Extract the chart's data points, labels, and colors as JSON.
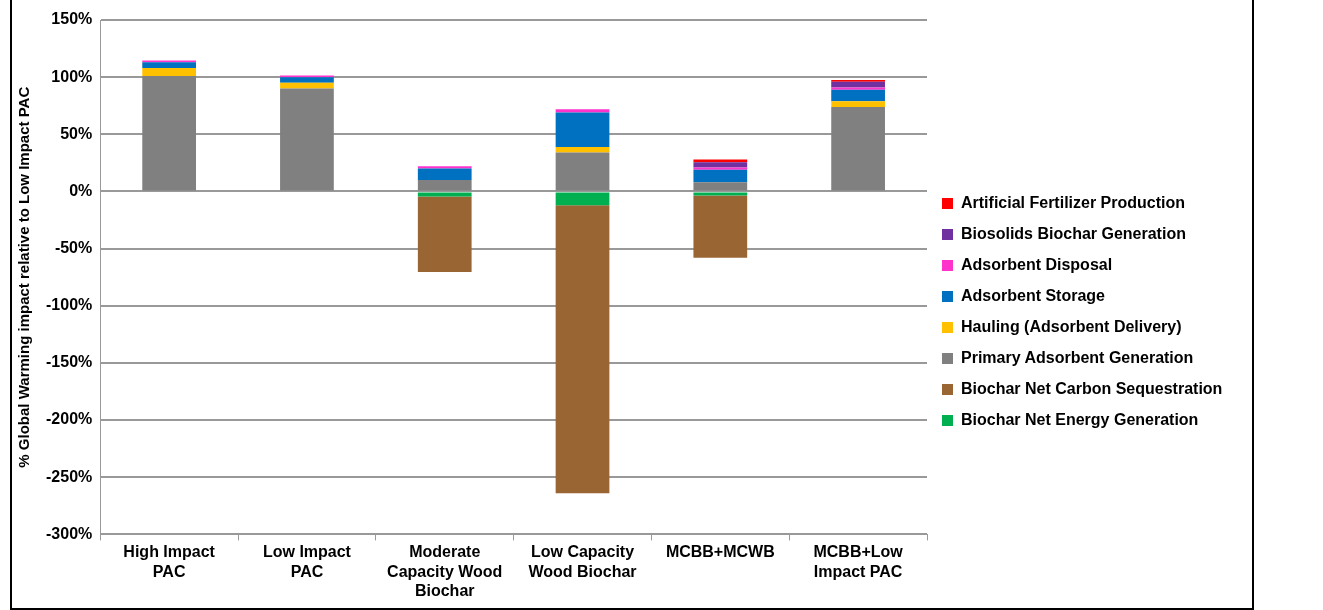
{
  "chart_data": {
    "type": "bar",
    "stacked": true,
    "ylabel": "% Global Warming impact relative to Low Impact PAC",
    "categories": [
      "High Impact PAC",
      "Low Impact PAC",
      "Moderate Capacity Wood Biochar",
      "Low Capacity Wood Biochar",
      "MCBB+MCWB",
      "MCBB+Low Impact PAC"
    ],
    "series": [
      {
        "name": "Biochar Net Energy Generation",
        "color": "#00b050",
        "values": [
          null,
          null,
          -4.5,
          -12,
          -3.5,
          null
        ]
      },
      {
        "name": "Biochar Net Carbon Sequestration",
        "color": "#996633",
        "values": [
          null,
          null,
          -66,
          -252,
          -54.5,
          -1
        ]
      },
      {
        "name": "Primary Adsorbent Generation",
        "color": "#808080",
        "values": [
          101,
          90,
          10,
          34,
          8,
          74
        ]
      },
      {
        "name": "Hauling (Adsorbent Delivery)",
        "color": "#ffc000",
        "values": [
          7,
          5,
          null,
          5,
          null,
          5
        ]
      },
      {
        "name": "Adsorbent Storage",
        "color": "#0070c0",
        "values": [
          5,
          5,
          10,
          30,
          11,
          10
        ]
      },
      {
        "name": "Adsorbent Disposal",
        "color": "#ff33cc",
        "values": [
          1.5,
          1.5,
          2,
          3,
          2,
          2
        ]
      },
      {
        "name": "Biosolids Biochar Generation",
        "color": "#7030a0",
        "values": [
          null,
          null,
          null,
          null,
          4.5,
          5
        ]
      },
      {
        "name": "Artificial Fertilizer Production",
        "color": "#ff0000",
        "values": [
          null,
          null,
          null,
          null,
          2.5,
          1.5
        ]
      }
    ],
    "ylim": [
      -300,
      150
    ],
    "yticks": [
      {
        "value": -300,
        "label": "-300%"
      },
      {
        "value": -250,
        "label": "-250%"
      },
      {
        "value": -200,
        "label": "-200%"
      },
      {
        "value": -150,
        "label": "-150%"
      },
      {
        "value": -100,
        "label": "-100%"
      },
      {
        "value": -50,
        "label": "-50%"
      },
      {
        "value": 0,
        "label": "0%"
      },
      {
        "value": 50,
        "label": "50%"
      },
      {
        "value": 100,
        "label": "100%"
      },
      {
        "value": 150,
        "label": "150%"
      }
    ],
    "grid": "y",
    "legend": "right"
  }
}
